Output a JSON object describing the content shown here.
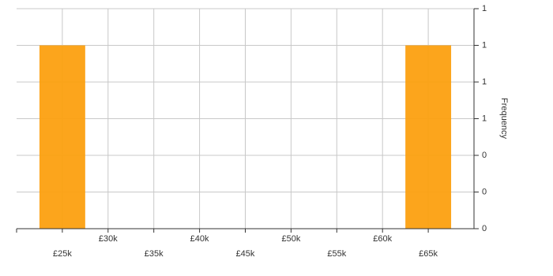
{
  "chart_data": {
    "type": "histogram",
    "y_label": "Frequency",
    "bins": [
      22500,
      27500,
      32500,
      37500,
      42500,
      47500,
      52500,
      57500,
      62500,
      67500
    ],
    "values": [
      1,
      0,
      0,
      0,
      0,
      0,
      0,
      0,
      1
    ],
    "color": "#fca010",
    "xlim": [
      20000,
      70000
    ],
    "xticks": [
      {
        "value": 25000,
        "label": "£25k"
      },
      {
        "value": 30000,
        "label": "£30k"
      },
      {
        "value": 35000,
        "label": "£35k"
      },
      {
        "value": 40000,
        "label": "£40k"
      },
      {
        "value": 45000,
        "label": "£45k"
      },
      {
        "value": 50000,
        "label": "£50k"
      },
      {
        "value": 55000,
        "label": "£55k"
      },
      {
        "value": 60000,
        "label": "£60k"
      },
      {
        "value": 65000,
        "label": "£65k"
      }
    ],
    "ylim": [
      0,
      1.2
    ],
    "yticks": [
      0,
      {
        "value": 0.2,
        "label": "0"
      },
      {
        "value": 0.4,
        "label": "0"
      },
      {
        "value": 0.6,
        "label": "1"
      },
      {
        "value": 0.8,
        "label": "1"
      },
      {
        "value": 1.0,
        "label": "1"
      },
      {
        "value": 1.2,
        "label": "1"
      }
    ],
    "y_axis_side": "right",
    "grid": true
  }
}
